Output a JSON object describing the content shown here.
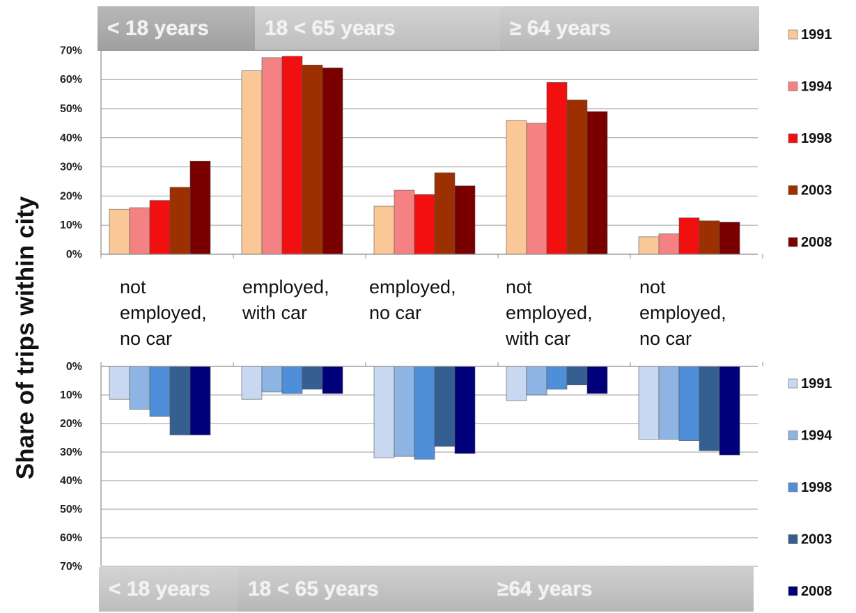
{
  "y_axis_title": "Share of trips within city",
  "age_groups": {
    "under_18": "< 18 years",
    "adult": "18 < 65 years",
    "senior_top": "≥ 64 years",
    "senior_bottom": "≥64 years"
  },
  "colors": {
    "warm": [
      "#fac896",
      "#f58282",
      "#f20f0f",
      "#9c3000",
      "#7a0000"
    ],
    "cool": [
      "#c8d8f0",
      "#8db4e2",
      "#4f8fd9",
      "#365f91",
      "#00007a"
    ]
  },
  "chart_data": [
    {
      "type": "bar",
      "categories": [
        "not employed, no car",
        "employed, with car",
        "employed, no car",
        "not employed, with car",
        "not employed, no car"
      ],
      "series": [
        {
          "name": "1991",
          "values": [
            15.5,
            63,
            16.5,
            46,
            6
          ]
        },
        {
          "name": "1994",
          "values": [
            16,
            67.5,
            22,
            45,
            7
          ]
        },
        {
          "name": "1998",
          "values": [
            18.5,
            68,
            20.5,
            59,
            12.5
          ]
        },
        {
          "name": "2003",
          "values": [
            23,
            65,
            28,
            53,
            11.5
          ]
        },
        {
          "name": "2008",
          "values": [
            32,
            64,
            23.5,
            49,
            11
          ]
        }
      ],
      "yticks": [
        "0%",
        "10%",
        "20%",
        "30%",
        "40%",
        "50%",
        "60%",
        "70%"
      ],
      "ylim": [
        0,
        70
      ],
      "grid": true,
      "legend": "right"
    },
    {
      "type": "bar",
      "categories": [
        "not employed, no car",
        "employed, with car",
        "employed, no car",
        "not employed, with car",
        "not employed, no car"
      ],
      "series": [
        {
          "name": "1991",
          "values": [
            11.5,
            11.5,
            32,
            12,
            25.5
          ]
        },
        {
          "name": "1994",
          "values": [
            15,
            9,
            31.5,
            10,
            25.5
          ]
        },
        {
          "name": "1998",
          "values": [
            17.5,
            9.5,
            32.5,
            8,
            26
          ]
        },
        {
          "name": "2003",
          "values": [
            24,
            8,
            28,
            6.5,
            29.5
          ]
        },
        {
          "name": "2008",
          "values": [
            24,
            9.5,
            30.5,
            9.5,
            31
          ]
        }
      ],
      "yticks": [
        "0%",
        "10%",
        "20%",
        "30%",
        "40%",
        "50%",
        "60%",
        "70%"
      ],
      "ylim": [
        0,
        70
      ],
      "inverted": true,
      "grid": true,
      "legend": "right"
    }
  ]
}
